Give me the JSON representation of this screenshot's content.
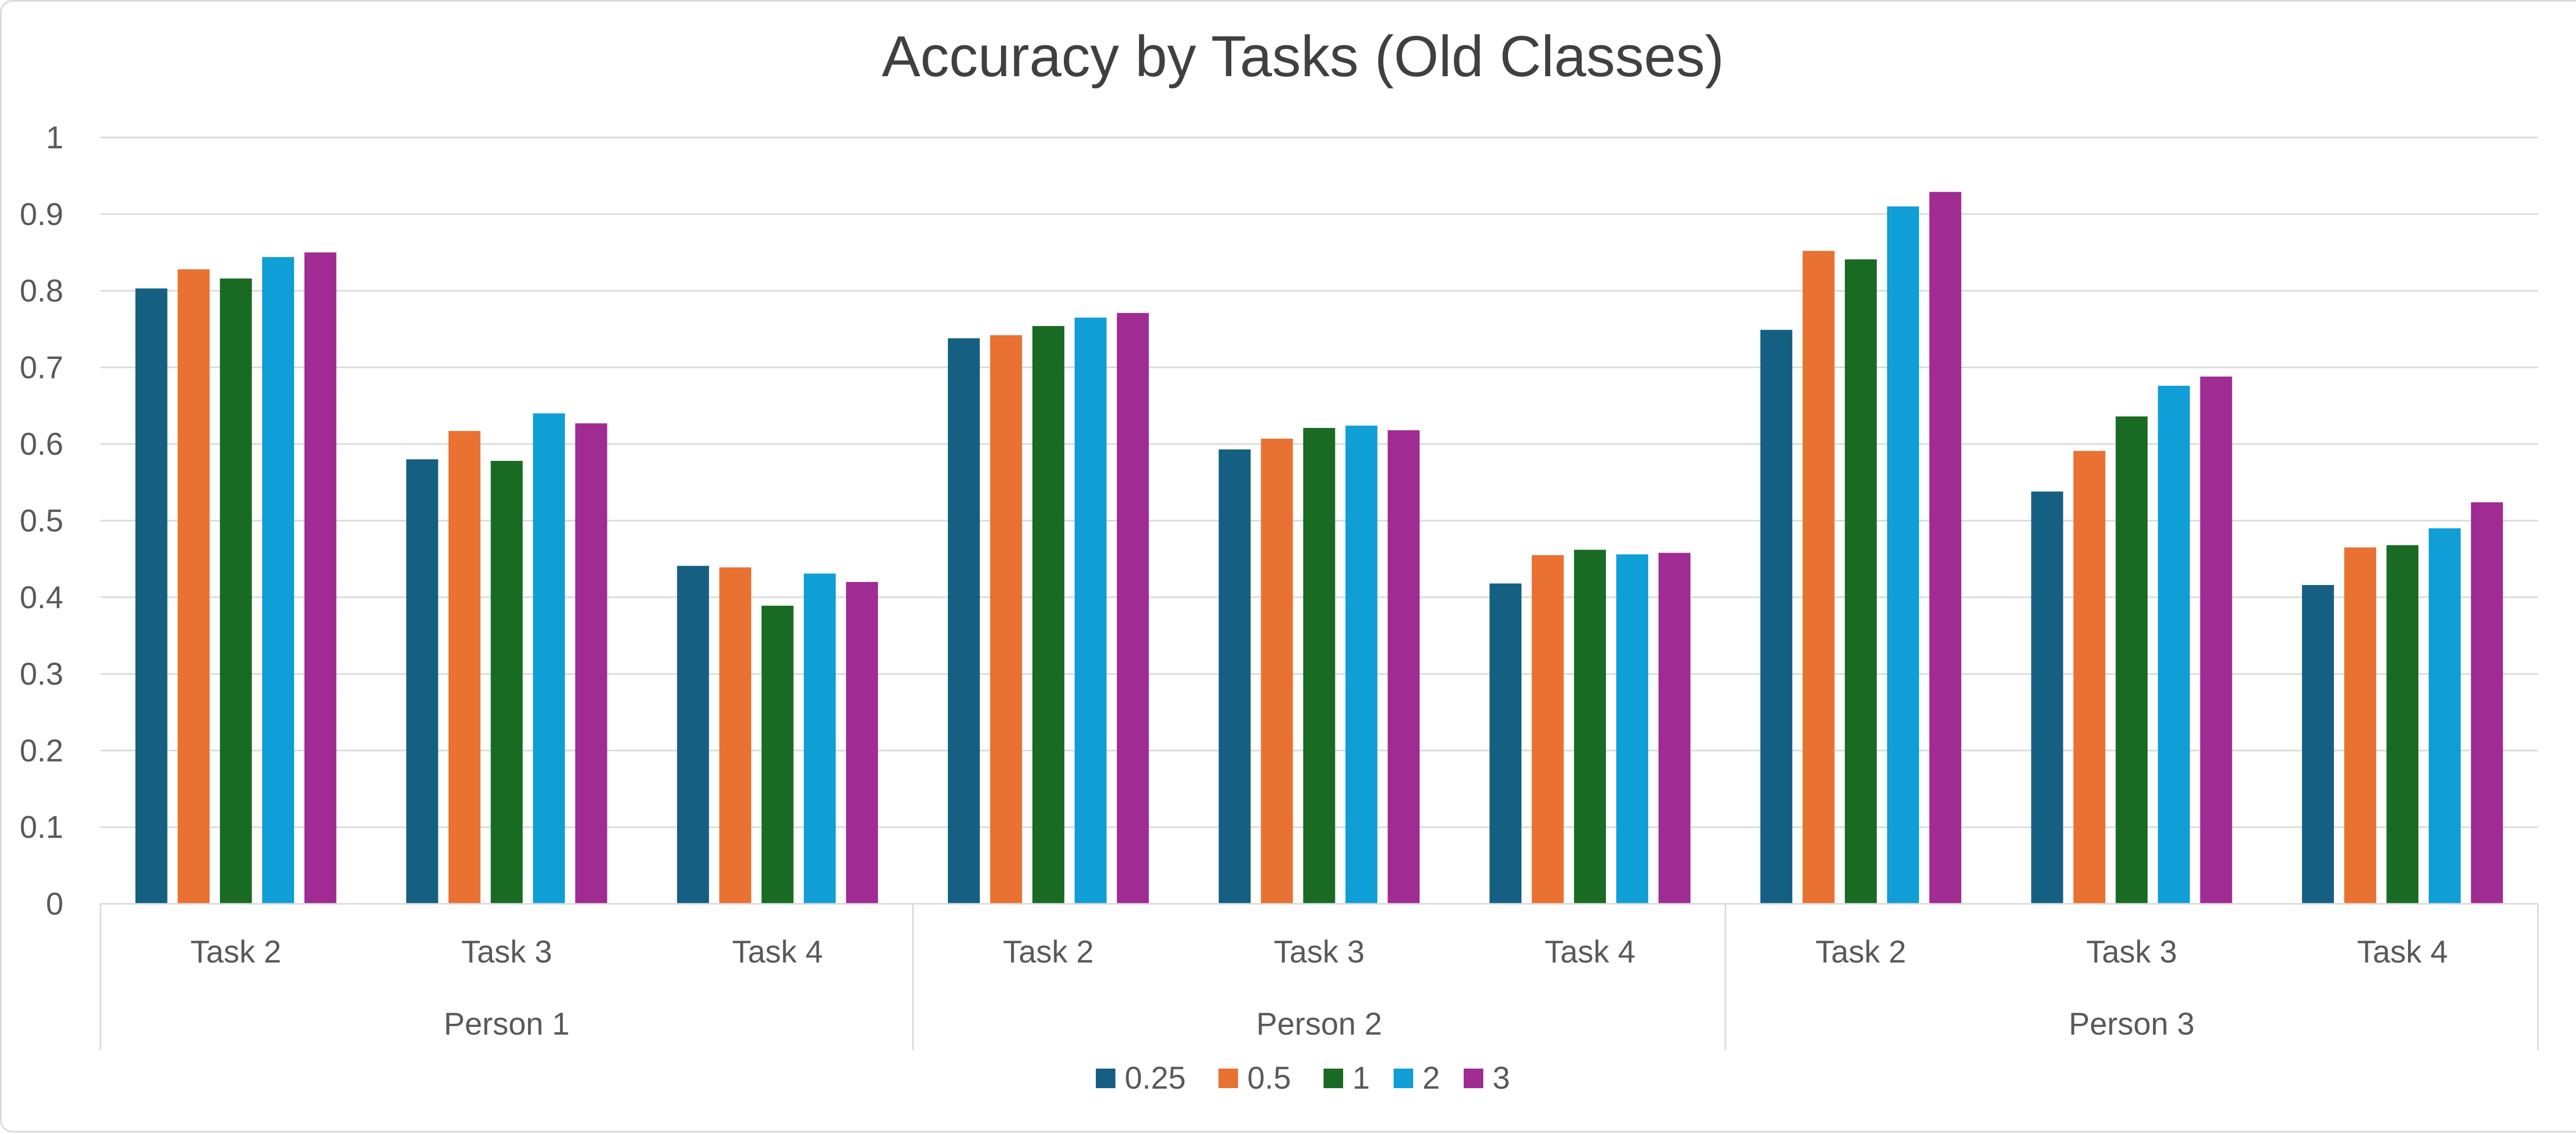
{
  "chart_data": {
    "type": "bar",
    "title": "Accuracy by Tasks (Old Classes)",
    "xlabel": "",
    "ylabel": "",
    "ylim": [
      0,
      1
    ],
    "yticks": [
      "0",
      "0.1",
      "0.2",
      "0.3",
      "0.4",
      "0.5",
      "0.6",
      "0.7",
      "0.8",
      "0.9",
      "1"
    ],
    "grid": true,
    "legend_position": "bottom",
    "groups": [
      {
        "label": "Person 1",
        "categories": [
          "Task 2",
          "Task 3",
          "Task 4"
        ]
      },
      {
        "label": "Person 2",
        "categories": [
          "Task 2",
          "Task 3",
          "Task 4"
        ]
      },
      {
        "label": "Person 3",
        "categories": [
          "Task 2",
          "Task 3",
          "Task 4"
        ]
      }
    ],
    "categories": [
      "Person 1 / Task 2",
      "Person 1 / Task 3",
      "Person 1 / Task 4",
      "Person 2 / Task 2",
      "Person 2 / Task 3",
      "Person 2 / Task 4",
      "Person 3 / Task 2",
      "Person 3 / Task 3",
      "Person 3 / Task 4"
    ],
    "series": [
      {
        "name": "0.25",
        "color": "#156082",
        "values": [
          0.803,
          0.58,
          0.441,
          0.738,
          0.593,
          0.418,
          0.749,
          0.538,
          0.416
        ]
      },
      {
        "name": "0.5",
        "color": "#E97132",
        "values": [
          0.828,
          0.617,
          0.439,
          0.742,
          0.607,
          0.455,
          0.852,
          0.591,
          0.465
        ]
      },
      {
        "name": "1",
        "color": "#196B24",
        "values": [
          0.816,
          0.578,
          0.389,
          0.754,
          0.621,
          0.462,
          0.841,
          0.636,
          0.468
        ]
      },
      {
        "name": "2",
        "color": "#0F9ED5",
        "values": [
          0.844,
          0.64,
          0.431,
          0.765,
          0.624,
          0.456,
          0.91,
          0.676,
          0.49
        ]
      },
      {
        "name": "3",
        "color": "#A02B93",
        "values": [
          0.85,
          0.627,
          0.42,
          0.771,
          0.618,
          0.458,
          0.929,
          0.688,
          0.524
        ]
      }
    ]
  }
}
